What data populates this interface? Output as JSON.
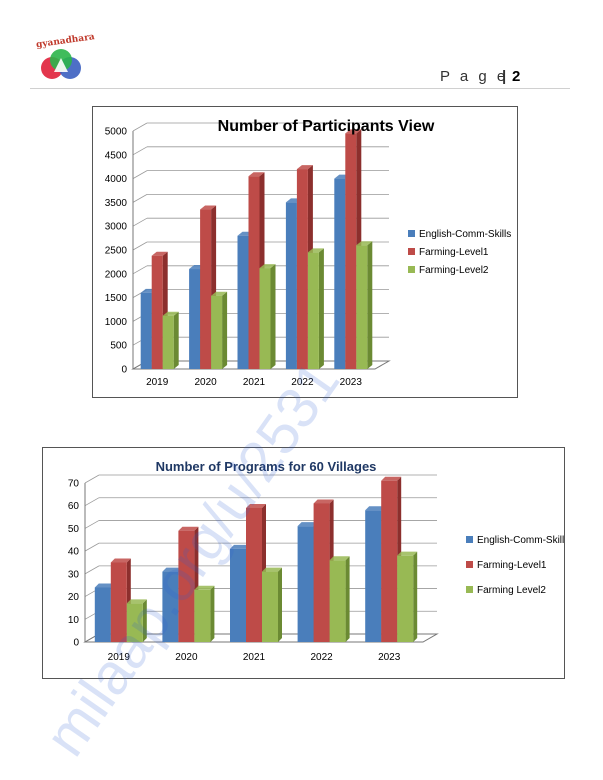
{
  "header": {
    "logo_text": "gyanadhara",
    "page_label": "P a g e",
    "separator": "|",
    "page_number": "2"
  },
  "watermark": "milaap.org/u/2531",
  "colors": {
    "series": [
      "#4a7ebb",
      "#be4b48",
      "#98b954"
    ],
    "series_dark": [
      "#2e5a8f",
      "#8c2f2d",
      "#6b8a33"
    ]
  },
  "chart_data": [
    {
      "type": "bar",
      "title": "Number of Participants View",
      "categories": [
        "2019",
        "2020",
        "2021",
        "2022",
        "2023"
      ],
      "ylim": [
        0,
        5000
      ],
      "yticks": [
        0,
        500,
        1000,
        1500,
        2000,
        2500,
        3000,
        3500,
        4000,
        4500,
        5000
      ],
      "grid": true,
      "legend": "right",
      "series": [
        {
          "name": "English-Comm-Skills",
          "values": [
            1600,
            2100,
            2800,
            3500,
            4000
          ]
        },
        {
          "name": "Farming-Level1",
          "values": [
            2380,
            3350,
            4050,
            4200,
            4950
          ]
        },
        {
          "name": "Farming-Level2",
          "values": [
            1120,
            1540,
            2120,
            2450,
            2600
          ]
        }
      ]
    },
    {
      "type": "bar",
      "title": "Number of Programs for 60 Villages",
      "categories": [
        "2019",
        "2020",
        "2021",
        "2022",
        "2023"
      ],
      "ylim": [
        0,
        70
      ],
      "yticks": [
        0,
        10,
        20,
        30,
        40,
        50,
        60,
        70
      ],
      "grid": true,
      "legend": "right",
      "series": [
        {
          "name": "English-Comm-Skills",
          "values": [
            24,
            31,
            41,
            51,
            58
          ]
        },
        {
          "name": "Farming-Level1",
          "values": [
            35,
            49,
            59,
            61,
            71
          ]
        },
        {
          "name": "Farming Level2",
          "values": [
            17,
            23,
            31,
            36,
            38
          ]
        }
      ]
    }
  ]
}
